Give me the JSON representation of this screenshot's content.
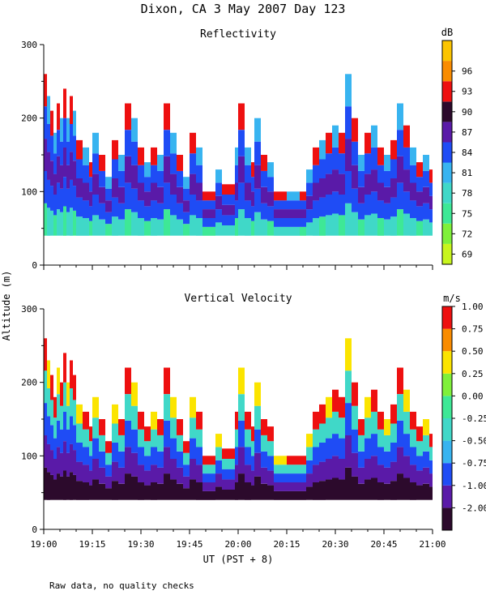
{
  "page": {
    "title": "Dixon, CA  3 May 2007  Day 123",
    "footnote": "Raw data, no quality checks",
    "shared_ylabel": "Altitude (m)",
    "xlabel": "UT  (PST + 8)"
  },
  "chart_data": [
    {
      "type": "heatmap",
      "title": "Reflectivity",
      "ylim": [
        0,
        300
      ],
      "yticks": [
        0,
        100,
        200,
        300
      ],
      "xlim": [
        "19:00",
        "21:00"
      ],
      "xticks": [
        "19:00",
        "19:15",
        "19:30",
        "19:45",
        "20:00",
        "20:15",
        "20:30",
        "20:45",
        "21:00"
      ],
      "colorbar": {
        "unit": "dB",
        "labels": [
          "69",
          "72",
          "75",
          "78",
          "81",
          "84",
          "87",
          "90",
          "93",
          "96"
        ],
        "colors": [
          "#c8f51e",
          "#7ff03a",
          "#3ee896",
          "#40d8c8",
          "#38b4f0",
          "#1f4cf5",
          "#5a1aa8",
          "#2c0a2c",
          "#ee1010",
          "#fa8c00",
          "#fbc400"
        ]
      },
      "data_bottom": 40,
      "column_tops": [
        [
          "19:00",
          260
        ],
        [
          "19:01",
          230
        ],
        [
          "19:02",
          210
        ],
        [
          "19:03",
          180
        ],
        [
          "19:04",
          220
        ],
        [
          "19:05",
          200
        ],
        [
          "19:06",
          240
        ],
        [
          "19:07",
          200
        ],
        [
          "19:08",
          230
        ],
        [
          "19:09",
          210
        ],
        [
          "19:10",
          170
        ],
        [
          "19:12",
          160
        ],
        [
          "19:14",
          140
        ],
        [
          "19:15",
          180
        ],
        [
          "19:17",
          150
        ],
        [
          "19:19",
          120
        ],
        [
          "19:21",
          170
        ],
        [
          "19:23",
          150
        ],
        [
          "19:25",
          220
        ],
        [
          "19:27",
          200
        ],
        [
          "19:29",
          160
        ],
        [
          "19:31",
          140
        ],
        [
          "19:33",
          160
        ],
        [
          "19:35",
          150
        ],
        [
          "19:37",
          220
        ],
        [
          "19:39",
          180
        ],
        [
          "19:41",
          150
        ],
        [
          "19:43",
          120
        ],
        [
          "19:45",
          180
        ],
        [
          "19:47",
          160
        ],
        [
          "19:49",
          100
        ],
        [
          "19:53",
          130
        ],
        [
          "19:55",
          110
        ],
        [
          "19:59",
          160
        ],
        [
          "20:00",
          220
        ],
        [
          "20:02",
          160
        ],
        [
          "20:04",
          140
        ],
        [
          "20:05",
          200
        ],
        [
          "20:07",
          150
        ],
        [
          "20:09",
          140
        ],
        [
          "20:11",
          100
        ],
        [
          "20:15",
          100
        ],
        [
          "20:19",
          100
        ],
        [
          "20:21",
          130
        ],
        [
          "20:23",
          160
        ],
        [
          "20:25",
          170
        ],
        [
          "20:27",
          180
        ],
        [
          "20:29",
          190
        ],
        [
          "20:31",
          180
        ],
        [
          "20:33",
          260
        ],
        [
          "20:35",
          200
        ],
        [
          "20:37",
          150
        ],
        [
          "20:39",
          180
        ],
        [
          "20:41",
          190
        ],
        [
          "20:43",
          160
        ],
        [
          "20:45",
          150
        ],
        [
          "20:47",
          170
        ],
        [
          "20:49",
          220
        ],
        [
          "20:51",
          190
        ],
        [
          "20:53",
          160
        ],
        [
          "20:55",
          140
        ],
        [
          "20:57",
          150
        ],
        [
          "20:59",
          130
        ]
      ]
    },
    {
      "type": "heatmap",
      "title": "Vertical Velocity",
      "ylim": [
        0,
        300
      ],
      "yticks": [
        0,
        100,
        200,
        300
      ],
      "xlim": [
        "19:00",
        "21:00"
      ],
      "xticks": [
        "19:00",
        "19:15",
        "19:30",
        "19:45",
        "20:00",
        "20:15",
        "20:30",
        "20:45",
        "21:00"
      ],
      "colorbar": {
        "unit": "m/s",
        "labels": [
          "-2.00",
          "-1.00",
          "-0.75",
          "-0.50",
          "-0.25",
          "0.00",
          "0.25",
          "0.50",
          "0.75",
          "1.00"
        ],
        "colors": [
          "#2c0a2c",
          "#5a1aa8",
          "#1f4cf5",
          "#38b4f0",
          "#40d8c8",
          "#3ee896",
          "#7ff03a",
          "#fbe400",
          "#fa8c00",
          "#ee1010"
        ]
      },
      "data_bottom": 40,
      "column_tops": [
        [
          "19:00",
          260
        ],
        [
          "19:01",
          230
        ],
        [
          "19:02",
          210
        ],
        [
          "19:03",
          180
        ],
        [
          "19:04",
          220
        ],
        [
          "19:05",
          200
        ],
        [
          "19:06",
          240
        ],
        [
          "19:07",
          200
        ],
        [
          "19:08",
          230
        ],
        [
          "19:09",
          210
        ],
        [
          "19:10",
          170
        ],
        [
          "19:12",
          160
        ],
        [
          "19:14",
          140
        ],
        [
          "19:15",
          180
        ],
        [
          "19:17",
          150
        ],
        [
          "19:19",
          120
        ],
        [
          "19:21",
          170
        ],
        [
          "19:23",
          150
        ],
        [
          "19:25",
          220
        ],
        [
          "19:27",
          200
        ],
        [
          "19:29",
          160
        ],
        [
          "19:31",
          140
        ],
        [
          "19:33",
          160
        ],
        [
          "19:35",
          150
        ],
        [
          "19:37",
          220
        ],
        [
          "19:39",
          180
        ],
        [
          "19:41",
          150
        ],
        [
          "19:43",
          120
        ],
        [
          "19:45",
          180
        ],
        [
          "19:47",
          160
        ],
        [
          "19:49",
          100
        ],
        [
          "19:53",
          130
        ],
        [
          "19:55",
          110
        ],
        [
          "19:59",
          160
        ],
        [
          "20:00",
          220
        ],
        [
          "20:02",
          160
        ],
        [
          "20:04",
          140
        ],
        [
          "20:05",
          200
        ],
        [
          "20:07",
          150
        ],
        [
          "20:09",
          140
        ],
        [
          "20:11",
          100
        ],
        [
          "20:15",
          100
        ],
        [
          "20:19",
          100
        ],
        [
          "20:21",
          130
        ],
        [
          "20:23",
          160
        ],
        [
          "20:25",
          170
        ],
        [
          "20:27",
          180
        ],
        [
          "20:29",
          190
        ],
        [
          "20:31",
          180
        ],
        [
          "20:33",
          260
        ],
        [
          "20:35",
          200
        ],
        [
          "20:37",
          150
        ],
        [
          "20:39",
          180
        ],
        [
          "20:41",
          190
        ],
        [
          "20:43",
          160
        ],
        [
          "20:45",
          150
        ],
        [
          "20:47",
          170
        ],
        [
          "20:49",
          220
        ],
        [
          "20:51",
          190
        ],
        [
          "20:53",
          160
        ],
        [
          "20:55",
          140
        ],
        [
          "20:57",
          150
        ],
        [
          "20:59",
          130
        ]
      ]
    }
  ]
}
